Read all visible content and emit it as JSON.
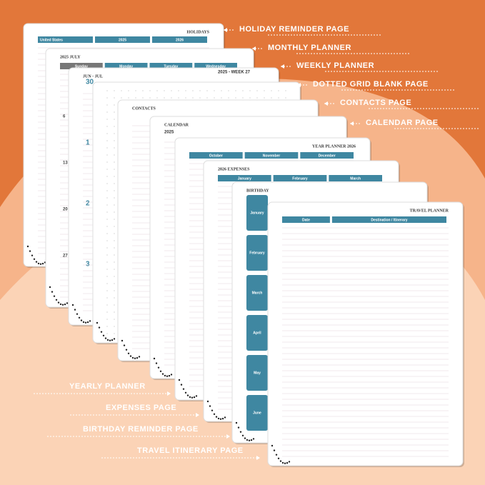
{
  "callouts_right": [
    "HOLIDAY REMINDER PAGE",
    "MONTHLY PLANNER",
    "WEEKLY PLANNER",
    "DOTTED GRID BLANK PAGE",
    "CONTACTS PAGE",
    "CALENDAR PAGE"
  ],
  "callouts_left": [
    "YEARLY PLANNER",
    "EXPENSES PAGE",
    "BIRTHDAY REMINDER PAGE",
    "TRAVEL ITINERARY PAGE"
  ],
  "pages": [
    {
      "title": "HOLIDAYS",
      "tabs": [
        "United States",
        "2025",
        "2026"
      ]
    },
    {
      "title": "2025 JULY",
      "tabs": [
        "Sunday",
        "Monday",
        "Tuesday",
        "Wednesday"
      ],
      "numbers": [
        "6",
        "13",
        "20",
        "27"
      ]
    },
    {
      "title": "JUN - JUL",
      "subtitle": "2025 - WEEK 27",
      "numbers": [
        "30",
        "1",
        "2",
        "3"
      ]
    },
    {},
    {
      "title": "CONTACTS"
    },
    {
      "title": "CALENDAR",
      "subtitle": "2025"
    },
    {
      "title": "YEAR PLANNER 2026",
      "tabs": [
        "October",
        "November",
        "December"
      ]
    },
    {
      "title": "2026 EXPENSES",
      "tabs": [
        "January",
        "February",
        "March"
      ]
    },
    {
      "title": "BIRTHDAY",
      "side_tabs": [
        "January",
        "February",
        "March",
        "April",
        "May",
        "June"
      ]
    },
    {
      "title": "TRAVEL PLANNER",
      "tabs": [
        "Date",
        "Destination / Itinerary"
      ]
    }
  ]
}
